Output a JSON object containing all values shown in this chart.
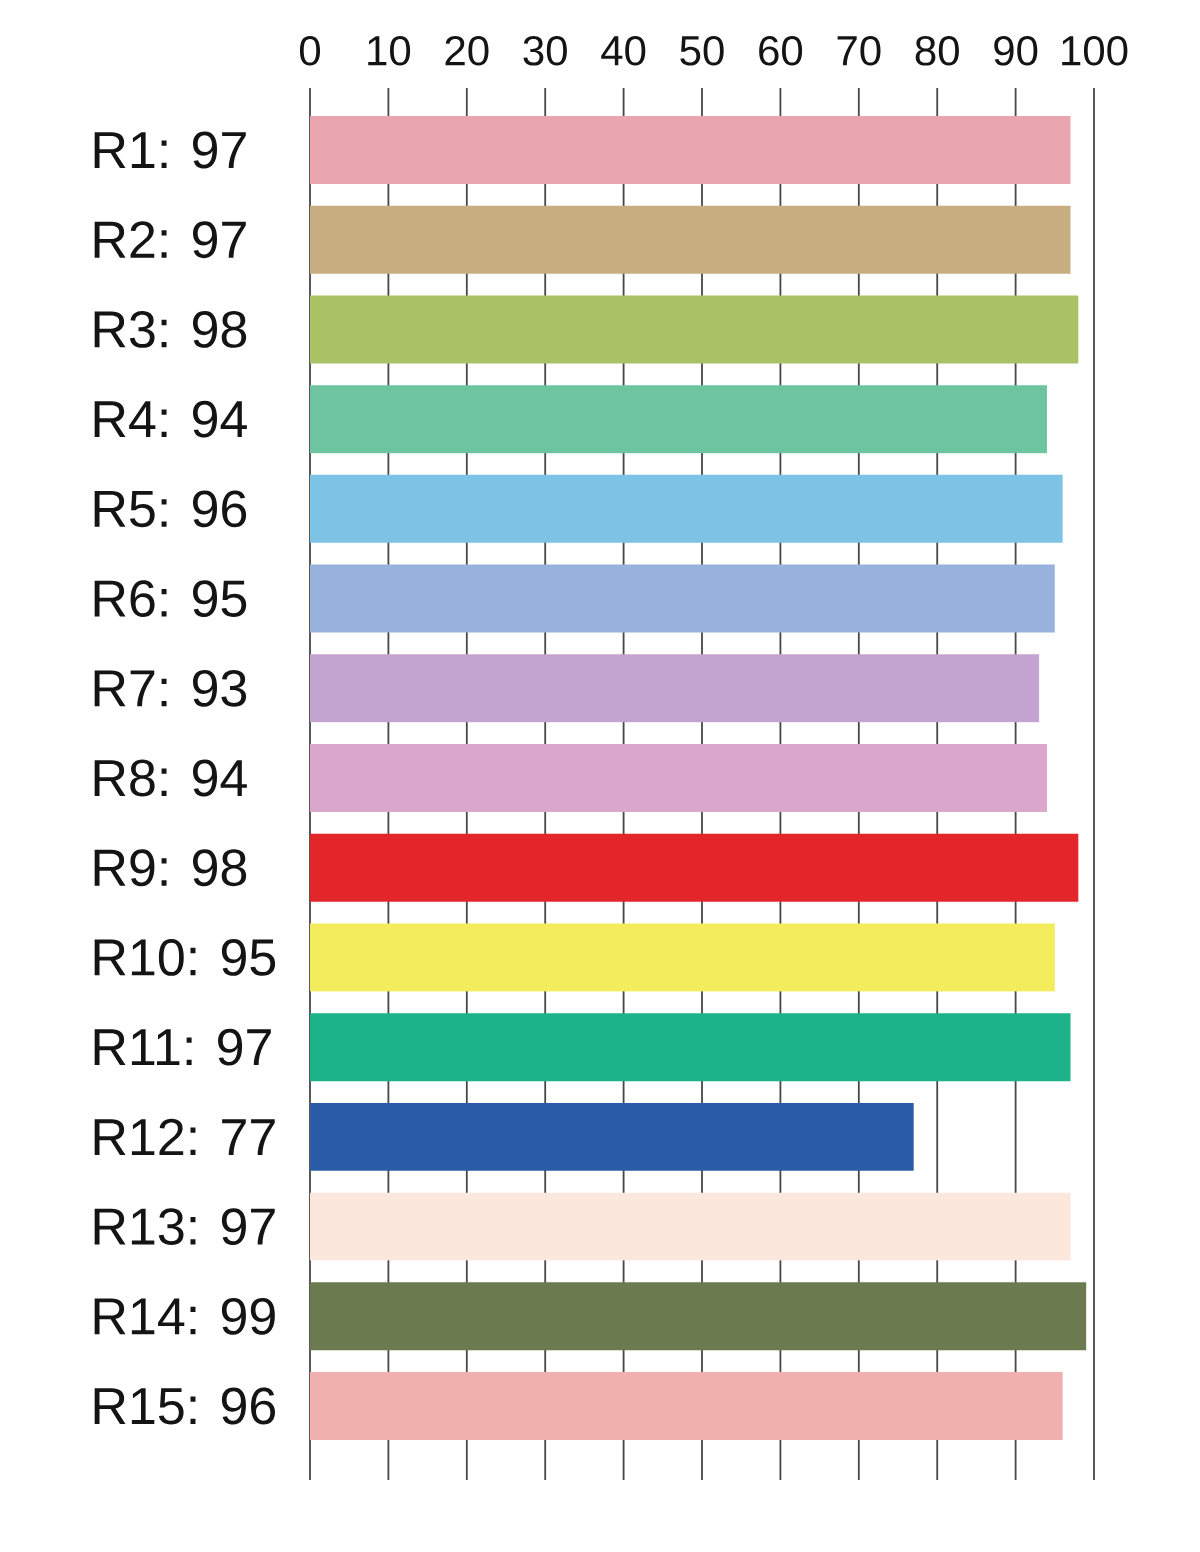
{
  "chart_data": {
    "type": "bar",
    "orientation": "horizontal",
    "categories": [
      "R1: 97",
      "R2: 97",
      "R3: 98",
      "R4: 94",
      "R5: 96",
      "R6: 95",
      "R7: 93",
      "R8: 94",
      "R9: 98",
      "R10: 95",
      "R11: 97",
      "R12: 77",
      "R13: 97",
      "R14: 99",
      "R15: 96"
    ],
    "values": [
      97,
      97,
      98,
      94,
      96,
      95,
      93,
      94,
      98,
      95,
      97,
      77,
      97,
      99,
      96
    ],
    "colors": [
      "#e9a6b0",
      "#c8ad80",
      "#a9c266",
      "#6cc4a0",
      "#7dc3e6",
      "#97b2dc",
      "#c3a4d0",
      "#dba6cb",
      "#e3262a",
      "#f3ec5c",
      "#1db38a",
      "#2a5ca8",
      "#fbe7dc",
      "#6b7b4f",
      "#f0b0ad"
    ],
    "xlim": [
      0,
      100
    ],
    "xticks": [
      0,
      10,
      20,
      30,
      40,
      50,
      60,
      70,
      80,
      90,
      100
    ],
    "grid": "x"
  }
}
